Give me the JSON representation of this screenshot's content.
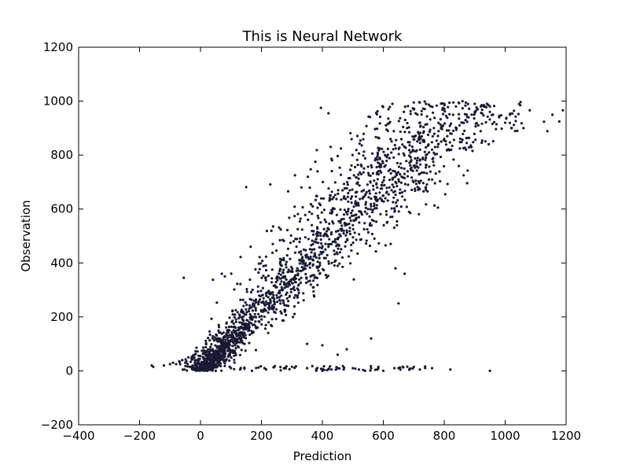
{
  "chart_data": {
    "type": "scatter",
    "title": "This is Neural Network",
    "xlabel": "Prediction",
    "ylabel": "Observation",
    "xlim": [
      -400,
      1200
    ],
    "ylim": [
      -200,
      1200
    ],
    "xticks": [
      -400,
      -200,
      0,
      200,
      400,
      600,
      800,
      1000,
      1200
    ],
    "yticks": [
      -200,
      0,
      200,
      400,
      600,
      800,
      1000,
      1200
    ],
    "xtick_labels": [
      "−400",
      "−200",
      "0",
      "200",
      "400",
      "600",
      "800",
      "1000",
      "1200"
    ],
    "ytick_labels": [
      "−200",
      "0",
      "200",
      "400",
      "600",
      "800",
      "1000",
      "1200"
    ],
    "grid": false,
    "marker_color": "#1a1a33",
    "points_shown_approx": 3000,
    "trend": "positive roughly linear: observation ~ 1.1 x prediction, points clustered near origin and spreading upward to ~1000",
    "series": [
      {
        "x": [
          -160,
          -155,
          -120,
          -100,
          -90,
          -80,
          -70,
          -60,
          -50,
          -40,
          -30,
          -20,
          -10,
          0,
          10,
          20,
          30,
          40,
          50,
          60,
          70,
          80,
          90,
          100,
          110,
          120,
          130,
          140,
          150,
          160,
          170,
          180,
          190,
          200,
          210,
          220,
          230,
          240,
          250,
          260,
          270,
          280,
          290,
          300,
          310,
          320,
          330,
          340,
          350,
          360,
          370,
          380,
          390,
          400,
          410,
          420,
          430,
          440,
          450,
          460,
          470,
          480,
          490,
          500,
          510,
          520,
          530,
          540,
          550,
          560,
          570,
          580,
          590,
          600,
          610,
          620,
          630,
          640,
          650,
          660,
          670,
          680,
          690,
          700,
          710,
          720,
          730,
          740,
          750,
          760,
          770,
          780,
          790,
          800,
          810,
          820,
          830,
          840,
          850,
          860,
          870,
          880,
          890,
          900,
          910,
          920,
          930,
          940,
          950,
          960,
          980,
          1000,
          1020,
          1040,
          1060,
          -55,
          70,
          80,
          395,
          420,
          310,
          630,
          700,
          720,
          740,
          800,
          830,
          860,
          900,
          950,
          20,
          50,
          100,
          130,
          210,
          300,
          350,
          380,
          400,
          430,
          450,
          470,
          500,
          520,
          540,
          560,
          580,
          600,
          650,
          700,
          720,
          760,
          820,
          950,
          350,
          400,
          450,
          480,
          560,
          640,
          650,
          670
        ],
        "y": [
          20,
          15,
          20,
          25,
          30,
          25,
          35,
          40,
          30,
          50,
          45,
          60,
          40,
          55,
          50,
          60,
          70,
          80,
          75,
          90,
          85,
          95,
          100,
          110,
          120,
          130,
          140,
          160,
          170,
          180,
          190,
          200,
          210,
          220,
          230,
          250,
          260,
          270,
          280,
          290,
          300,
          320,
          330,
          340,
          350,
          360,
          370,
          380,
          390,
          400,
          410,
          420,
          430,
          440,
          450,
          460,
          470,
          480,
          490,
          500,
          510,
          520,
          530,
          540,
          560,
          570,
          580,
          590,
          600,
          610,
          620,
          630,
          640,
          650,
          660,
          680,
          690,
          700,
          710,
          720,
          730,
          740,
          750,
          760,
          770,
          780,
          790,
          800,
          810,
          820,
          830,
          840,
          850,
          860,
          870,
          880,
          890,
          900,
          910,
          920,
          930,
          940,
          950,
          960,
          970,
          980,
          985,
          990,
          960,
          950,
          940,
          920,
          900,
          890,
          900,
          345,
          360,
          350,
          975,
          955,
          725,
          990,
          995,
          995,
          990,
          990,
          995,
          1000,
          990,
          980,
          5,
          0,
          10,
          5,
          10,
          15,
          10,
          5,
          0,
          5,
          10,
          5,
          10,
          5,
          0,
          10,
          5,
          0,
          10,
          15,
          5,
          10,
          5,
          0,
          100,
          95,
          60,
          80,
          120,
          380,
          250,
          360
        ]
      }
    ]
  }
}
